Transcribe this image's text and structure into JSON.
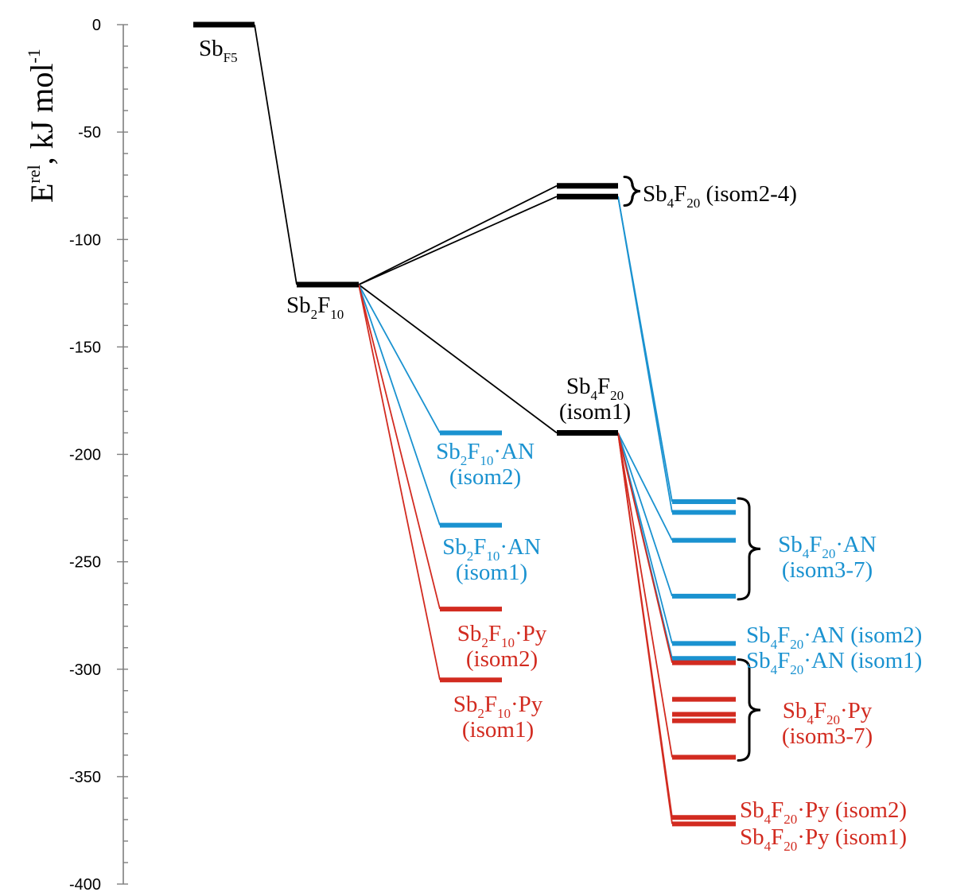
{
  "chart_data": {
    "type": "energy-level-diagram",
    "ylabel": {
      "main": "E",
      "sup": "rel",
      "rest": ", kJ mol",
      "unit_sup": "-1"
    },
    "ylim": [
      -400,
      0
    ],
    "y_ticks": [
      0,
      -50,
      -100,
      -150,
      -200,
      -250,
      -300,
      -350,
      -400
    ],
    "colors": {
      "neutral": "#000000",
      "AN": "#1a92d0",
      "Py": "#d22b20"
    },
    "levels": [
      {
        "id": "SbF5",
        "energy": 0,
        "col": 0,
        "color": "neutral"
      },
      {
        "id": "Sb2F10",
        "energy": -121,
        "col": 1,
        "color": "neutral"
      },
      {
        "id": "Sb4F20_iso2-4_a",
        "energy": -75,
        "col": 3,
        "color": "neutral"
      },
      {
        "id": "Sb4F20_iso2-4_b",
        "energy": -80,
        "col": 3,
        "color": "neutral"
      },
      {
        "id": "Sb4F20_iso1",
        "energy": -190,
        "col": 3,
        "color": "neutral"
      },
      {
        "id": "Sb2F10AN_iso2",
        "energy": -190,
        "col": 2,
        "color": "AN"
      },
      {
        "id": "Sb2F10AN_iso1",
        "energy": -233,
        "col": 2,
        "color": "AN"
      },
      {
        "id": "Sb2F10Py_iso2",
        "energy": -272,
        "col": 2,
        "color": "Py"
      },
      {
        "id": "Sb2F10Py_iso1",
        "energy": -305,
        "col": 2,
        "color": "Py"
      },
      {
        "id": "Sb4F20AN_a",
        "energy": -222,
        "col": 4,
        "color": "AN"
      },
      {
        "id": "Sb4F20AN_b",
        "energy": -227,
        "col": 4,
        "color": "AN"
      },
      {
        "id": "Sb4F20AN_c",
        "energy": -240,
        "col": 4,
        "color": "AN"
      },
      {
        "id": "Sb4F20AN_d",
        "energy": -266,
        "col": 4,
        "color": "AN"
      },
      {
        "id": "Sb4F20AN_iso2",
        "energy": -288,
        "col": 4,
        "color": "AN"
      },
      {
        "id": "Sb4F20AN_iso1",
        "energy": -295,
        "col": 4,
        "color": "AN"
      },
      {
        "id": "Sb4F20Py_a",
        "energy": -297,
        "col": 4,
        "color": "Py"
      },
      {
        "id": "Sb4F20Py_b",
        "energy": -314,
        "col": 4,
        "color": "Py"
      },
      {
        "id": "Sb4F20Py_c",
        "energy": -321,
        "col": 4,
        "color": "Py"
      },
      {
        "id": "Sb4F20Py_d",
        "energy": -324,
        "col": 4,
        "color": "Py"
      },
      {
        "id": "Sb4F20Py_e",
        "energy": -341,
        "col": 4,
        "color": "Py"
      },
      {
        "id": "Sb4F20Py_iso2",
        "energy": -369,
        "col": 4,
        "color": "Py"
      },
      {
        "id": "Sb4F20Py_iso1",
        "energy": -372,
        "col": 4,
        "color": "Py"
      }
    ],
    "connections": [
      {
        "from": "SbF5",
        "to": "Sb2F10",
        "color": "neutral"
      },
      {
        "from": "Sb2F10",
        "to": "Sb4F20_iso2-4_a",
        "color": "neutral"
      },
      {
        "from": "Sb2F10",
        "to": "Sb4F20_iso2-4_b",
        "color": "neutral"
      },
      {
        "from": "Sb2F10",
        "to": "Sb4F20_iso1",
        "color": "neutral"
      },
      {
        "from": "Sb2F10",
        "to": "Sb2F10AN_iso2",
        "color": "AN"
      },
      {
        "from": "Sb2F10",
        "to": "Sb2F10AN_iso1",
        "color": "AN"
      },
      {
        "from": "Sb2F10",
        "to": "Sb2F10Py_iso2",
        "color": "Py"
      },
      {
        "from": "Sb2F10",
        "to": "Sb2F10Py_iso1",
        "color": "Py"
      },
      {
        "from": "Sb4F20_iso2-4_b",
        "to": "Sb4F20AN_a",
        "color": "AN"
      },
      {
        "from": "Sb4F20_iso2-4_b",
        "to": "Sb4F20AN_b",
        "color": "AN"
      },
      {
        "from": "Sb4F20_iso1",
        "to": "Sb4F20AN_c",
        "color": "AN"
      },
      {
        "from": "Sb4F20_iso1",
        "to": "Sb4F20AN_d",
        "color": "AN"
      },
      {
        "from": "Sb4F20_iso1",
        "to": "Sb4F20AN_iso2",
        "color": "AN"
      },
      {
        "from": "Sb4F20_iso1",
        "to": "Sb4F20AN_iso1",
        "color": "AN"
      },
      {
        "from": "Sb4F20_iso1",
        "to": "Sb4F20Py_a",
        "color": "Py"
      },
      {
        "from": "Sb4F20_iso1",
        "to": "Sb4F20Py_e",
        "color": "Py"
      },
      {
        "from": "Sb4F20_iso1",
        "to": "Sb4F20Py_iso2",
        "color": "Py"
      },
      {
        "from": "Sb4F20_iso1",
        "to": "Sb4F20Py_iso1",
        "color": "Py"
      }
    ],
    "labels": [
      {
        "id": "lbl-sbf5",
        "color": "neutral",
        "lines": [
          [
            [
              "Sb",
              ""
            ],
            [
              "F",
              "sub"
            ],
            [
              "5",
              "sub"
            ]
          ]
        ]
      },
      {
        "id": "lbl-sb2f10",
        "color": "neutral",
        "lines": [
          [
            [
              "Sb",
              ""
            ],
            [
              "2",
              "sub"
            ],
            [
              "F",
              ""
            ],
            [
              "10",
              "sub"
            ]
          ]
        ]
      },
      {
        "id": "lbl-sb4f20-iso24",
        "color": "neutral",
        "lines": [
          [
            [
              "Sb",
              ""
            ],
            [
              "4",
              "sub"
            ],
            [
              "F",
              ""
            ],
            [
              "20",
              "sub"
            ],
            [
              " (isom2-4)",
              ""
            ]
          ]
        ]
      },
      {
        "id": "lbl-sb4f20-iso1",
        "color": "neutral",
        "lines": [
          [
            [
              "Sb",
              ""
            ],
            [
              "4",
              "sub"
            ],
            [
              "F",
              ""
            ],
            [
              "20",
              "sub"
            ]
          ],
          [
            [
              "(isom1)",
              ""
            ]
          ]
        ]
      },
      {
        "id": "lbl-sb2f10an-iso2",
        "color": "AN",
        "lines": [
          [
            [
              "Sb",
              ""
            ],
            [
              "2",
              "sub"
            ],
            [
              "F",
              ""
            ],
            [
              "10",
              "sub"
            ],
            [
              "·AN",
              ""
            ]
          ],
          [
            [
              "(isom2)",
              ""
            ]
          ]
        ]
      },
      {
        "id": "lbl-sb2f10an-iso1",
        "color": "AN",
        "lines": [
          [
            [
              "Sb",
              ""
            ],
            [
              "2",
              "sub"
            ],
            [
              "F",
              ""
            ],
            [
              "10",
              "sub"
            ],
            [
              "·AN",
              ""
            ]
          ],
          [
            [
              "(isom1)",
              ""
            ]
          ]
        ]
      },
      {
        "id": "lbl-sb2f10py-iso2",
        "color": "Py",
        "lines": [
          [
            [
              "Sb",
              ""
            ],
            [
              "2",
              "sub"
            ],
            [
              "F",
              ""
            ],
            [
              "10",
              "sub"
            ],
            [
              "·Py",
              ""
            ]
          ],
          [
            [
              "(isom2)",
              ""
            ]
          ]
        ]
      },
      {
        "id": "lbl-sb2f10py-iso1",
        "color": "Py",
        "lines": [
          [
            [
              "Sb",
              ""
            ],
            [
              "2",
              "sub"
            ],
            [
              "F",
              ""
            ],
            [
              "10",
              "sub"
            ],
            [
              "·Py",
              ""
            ]
          ],
          [
            [
              "(isom1)",
              ""
            ]
          ]
        ]
      },
      {
        "id": "lbl-sb4f20an-iso37",
        "color": "AN",
        "lines": [
          [
            [
              "Sb",
              ""
            ],
            [
              "4",
              "sub"
            ],
            [
              "F",
              ""
            ],
            [
              "20",
              "sub"
            ],
            [
              "·AN",
              ""
            ]
          ],
          [
            [
              "(isom3-7)",
              ""
            ]
          ]
        ]
      },
      {
        "id": "lbl-sb4f20an-iso2",
        "color": "AN",
        "lines": [
          [
            [
              "Sb",
              ""
            ],
            [
              "4",
              "sub"
            ],
            [
              "F",
              ""
            ],
            [
              "20",
              "sub"
            ],
            [
              "·AN (isom2)",
              ""
            ]
          ]
        ]
      },
      {
        "id": "lbl-sb4f20an-iso1",
        "color": "AN",
        "lines": [
          [
            [
              "Sb",
              ""
            ],
            [
              "4",
              "sub"
            ],
            [
              "F",
              ""
            ],
            [
              "20",
              "sub"
            ],
            [
              "·AN (isom1)",
              ""
            ]
          ]
        ]
      },
      {
        "id": "lbl-sb4f20py-iso37",
        "color": "Py",
        "lines": [
          [
            [
              "Sb",
              ""
            ],
            [
              "4",
              "sub"
            ],
            [
              "F",
              ""
            ],
            [
              "20",
              "sub"
            ],
            [
              "·Py",
              ""
            ]
          ],
          [
            [
              "(isom3-7)",
              ""
            ]
          ]
        ]
      },
      {
        "id": "lbl-sb4f20py-iso2",
        "color": "Py",
        "lines": [
          [
            [
              "Sb",
              ""
            ],
            [
              "4",
              "sub"
            ],
            [
              "F",
              ""
            ],
            [
              "20",
              "sub"
            ],
            [
              "·Py (isom2)",
              ""
            ]
          ]
        ]
      },
      {
        "id": "lbl-sb4f20py-iso1",
        "color": "Py",
        "lines": [
          [
            [
              "Sb",
              ""
            ],
            [
              "4",
              "sub"
            ],
            [
              "F",
              ""
            ],
            [
              "20",
              "sub"
            ],
            [
              "·Py (isom1)",
              ""
            ]
          ]
        ]
      }
    ],
    "braces": [
      {
        "id": "brace-sb4f20-iso24",
        "from": -75,
        "to": -80,
        "color": "neutral"
      },
      {
        "id": "brace-sb4f20an-iso37",
        "from": -222,
        "to": -266,
        "color": "neutral"
      },
      {
        "id": "brace-sb4f20py-iso37",
        "from": -297,
        "to": -341,
        "color": "neutral"
      }
    ]
  }
}
